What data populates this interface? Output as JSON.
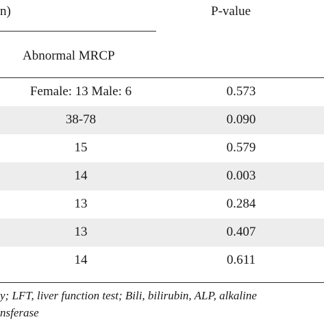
{
  "table": {
    "group_header_fragment": "n)",
    "pvalue_header": "P-value",
    "subheader_abnormal": "Abnormal MRCP",
    "rows": [
      {
        "abnormal": "Female: 13 Male: 6",
        "pvalue": "0.573"
      },
      {
        "abnormal": "38-78",
        "pvalue": "0.090"
      },
      {
        "abnormal": "15",
        "pvalue": "0.579"
      },
      {
        "abnormal": "14",
        "pvalue": "0.003"
      },
      {
        "abnormal": "13",
        "pvalue": "0.284"
      },
      {
        "abnormal": "13",
        "pvalue": "0.407"
      },
      {
        "abnormal": "14",
        "pvalue": "0.611"
      }
    ]
  },
  "footnote": {
    "line1": "y; LFT, liver function test; Bili, bilirubin, ALP, alkaline",
    "line2": "nsferase"
  }
}
